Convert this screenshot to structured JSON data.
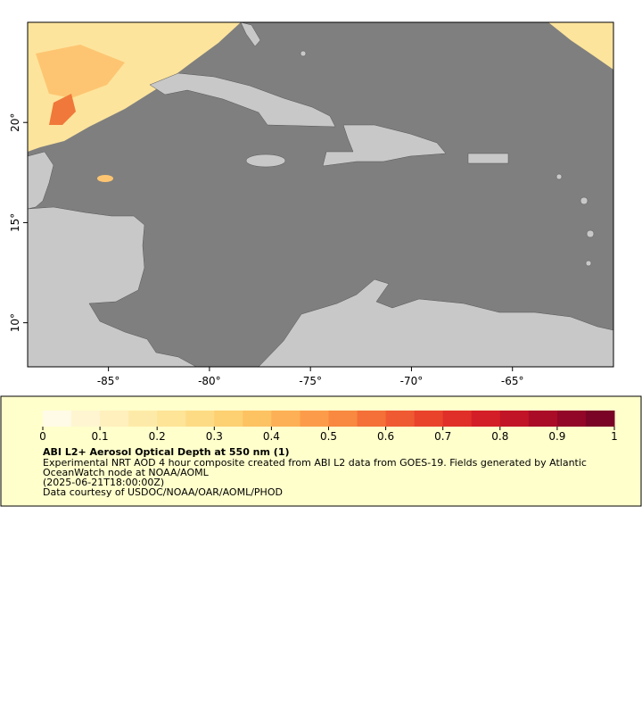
{
  "map": {
    "xlim": [
      -89,
      -60
    ],
    "ylim": [
      7.8,
      25
    ],
    "xticks": [
      {
        "value": -85,
        "label": "-85°"
      },
      {
        "value": -80,
        "label": "-80°"
      },
      {
        "value": -75,
        "label": "-75°"
      },
      {
        "value": -70,
        "label": "-70°"
      },
      {
        "value": -65,
        "label": "-65°"
      }
    ],
    "yticks": [
      {
        "value": 10,
        "label": "10°"
      },
      {
        "value": 15,
        "label": "15°"
      },
      {
        "value": 20,
        "label": "20°"
      }
    ]
  },
  "legend": {
    "range": [
      0,
      1
    ],
    "ticks": [
      0,
      0.1,
      0.2,
      0.3,
      0.4,
      0.5,
      0.6,
      0.7,
      0.8,
      0.9,
      1
    ],
    "colors": [
      "#fffbe6",
      "#fff5d0",
      "#fff0bd",
      "#feeaa8",
      "#fde496",
      "#fddb85",
      "#fdd072",
      "#fdc262",
      "#fdb055",
      "#fc9c4a",
      "#f98840",
      "#f47038",
      "#ef5a32",
      "#e9432c",
      "#e02f28",
      "#d41e27",
      "#c11427",
      "#aa0c28",
      "#920627",
      "#7a0426"
    ],
    "title": "ABI L2+ Aerosol Optical Depth at 550 nm (1)",
    "lines": [
      "Experimental NRT AOD 4 hour composite created from ABI L2 data from GOES-19. Fields generated by Atlantic",
      "OceanWatch node at NOAA/AOML",
      "(2025-06-21T18:00:00Z)",
      "Data courtesy of USDOC/NOAA/OAR/AOML/PHOD"
    ]
  }
}
